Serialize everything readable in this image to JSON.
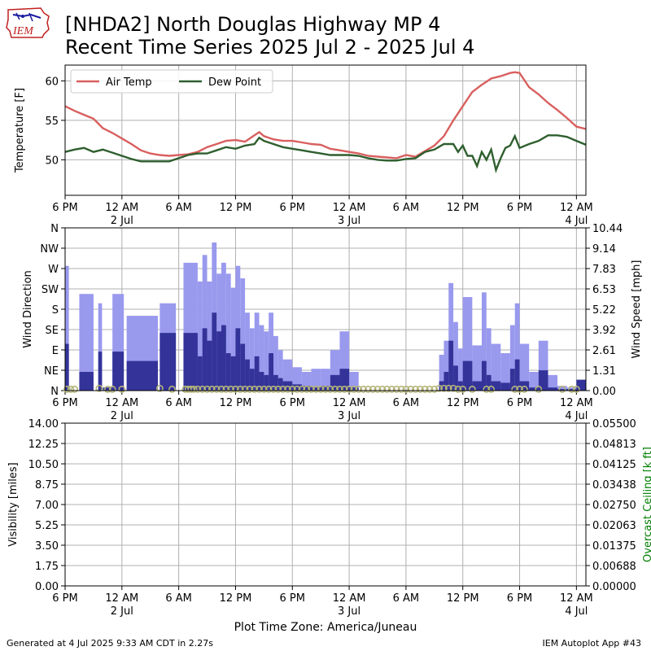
{
  "header": {
    "title_line1": "[NHDA2] North Douglas Highway MP 4",
    "title_line2": "Recent Time Series 2025 Jul 2 - 2025 Jul 4",
    "logo_text": "IEM"
  },
  "footer": {
    "generated": "Generated at 4 Jul 2025 9:33 AM CDT in 2.27s",
    "app": "IEM Autoplot App #43",
    "timezone_label": "Plot Time Zone: America/Juneau"
  },
  "chart_data": [
    {
      "type": "line",
      "ylabel": "Temperature [F]",
      "ylim": [
        45.5,
        62
      ],
      "yticks": [
        50,
        55,
        60
      ],
      "xlim": [
        0,
        55
      ],
      "x_unit": "hours since 2025 Jul 1 6 PM",
      "xticks": [
        {
          "x": 0,
          "label": "6 PM",
          "sub": ""
        },
        {
          "x": 6,
          "label": "12 AM",
          "sub": "2 Jul"
        },
        {
          "x": 12,
          "label": "6 AM",
          "sub": ""
        },
        {
          "x": 18,
          "label": "12 PM",
          "sub": ""
        },
        {
          "x": 24,
          "label": "6 PM",
          "sub": ""
        },
        {
          "x": 30,
          "label": "12 AM",
          "sub": "3 Jul"
        },
        {
          "x": 36,
          "label": "6 AM",
          "sub": ""
        },
        {
          "x": 42,
          "label": "12 PM",
          "sub": ""
        },
        {
          "x": 48,
          "label": "6 PM",
          "sub": ""
        },
        {
          "x": 54,
          "label": "12 AM",
          "sub": "4 Jul"
        }
      ],
      "grid": true,
      "legend": "upper-left",
      "series": [
        {
          "name": "Air Temp",
          "color": "#d95f5f",
          "x": [
            0,
            1,
            2,
            3,
            4,
            5,
            6,
            7,
            8,
            9,
            10,
            11,
            12,
            13,
            14,
            15,
            16,
            17,
            18,
            19,
            20,
            20.5,
            21,
            22,
            23,
            24,
            25,
            26,
            27,
            28,
            29,
            30,
            31,
            32,
            33,
            34,
            35,
            36,
            37,
            38,
            39,
            40,
            41,
            42,
            43,
            44,
            45,
            46,
            47,
            47.5,
            48,
            49,
            50,
            51,
            52,
            53,
            54,
            55
          ],
          "y": [
            56.8,
            56.2,
            55.7,
            55.2,
            54.0,
            53.4,
            52.7,
            52.0,
            51.2,
            50.8,
            50.6,
            50.5,
            50.6,
            50.7,
            51.0,
            51.6,
            52.0,
            52.4,
            52.5,
            52.3,
            53.1,
            53.5,
            53.0,
            52.6,
            52.4,
            52.4,
            52.2,
            52.0,
            51.9,
            51.4,
            51.2,
            51.0,
            50.8,
            50.5,
            50.4,
            50.3,
            50.2,
            50.6,
            50.4,
            51.1,
            51.8,
            53.0,
            55.0,
            56.8,
            58.6,
            59.5,
            60.3,
            60.6,
            61.0,
            61.1,
            61.0,
            59.2,
            58.3,
            57.2,
            56.3,
            55.3,
            54.2,
            53.9
          ]
        },
        {
          "name": "Dew Point",
          "color": "#2f5f2f",
          "x": [
            0,
            1,
            2,
            3,
            4,
            5,
            6,
            7,
            8,
            9,
            10,
            11,
            12,
            13,
            14,
            15,
            16,
            17,
            18,
            19,
            20,
            20.5,
            21,
            22,
            23,
            24,
            25,
            26,
            27,
            28,
            29,
            30,
            31,
            32,
            33,
            34,
            35,
            36,
            37,
            38,
            39,
            40,
            41,
            41.5,
            42,
            42.5,
            43,
            43.5,
            44,
            44.5,
            45,
            45.5,
            46,
            46.5,
            47,
            47.5,
            48,
            49,
            50,
            51,
            52,
            53,
            54,
            55
          ],
          "y": [
            51.0,
            51.3,
            51.5,
            51.0,
            51.3,
            50.9,
            50.5,
            50.1,
            49.8,
            49.8,
            49.8,
            49.8,
            50.2,
            50.6,
            50.8,
            50.8,
            51.2,
            51.6,
            51.4,
            51.8,
            52.0,
            52.8,
            52.4,
            52.0,
            51.6,
            51.4,
            51.2,
            51.0,
            50.8,
            50.6,
            50.6,
            50.6,
            50.5,
            50.2,
            50.0,
            49.9,
            49.9,
            50.1,
            50.2,
            51.0,
            51.3,
            52.0,
            52.0,
            51.0,
            51.8,
            50.5,
            50.5,
            49.2,
            51.0,
            50.0,
            51.3,
            48.7,
            50.2,
            51.5,
            51.8,
            53.0,
            51.5,
            52.0,
            52.4,
            53.1,
            53.1,
            52.9,
            52.4,
            51.9
          ]
        }
      ]
    },
    {
      "type": "bar",
      "ylabel": "Wind Direction",
      "y2label": "Wind Speed [mph]",
      "ylim": [
        0,
        360
      ],
      "y2lim": [
        0,
        10.44
      ],
      "yticks": [
        {
          "v": 0,
          "label": "N"
        },
        {
          "v": 45,
          "label": "NE"
        },
        {
          "v": 90,
          "label": "E"
        },
        {
          "v": 135,
          "label": "SE"
        },
        {
          "v": 180,
          "label": "S"
        },
        {
          "v": 225,
          "label": "SW"
        },
        {
          "v": 270,
          "label": "W"
        },
        {
          "v": 315,
          "label": "NW"
        },
        {
          "v": 360,
          "label": "N"
        }
      ],
      "y2ticks": [
        "0.00",
        "1.31",
        "2.61",
        "3.92",
        "5.22",
        "6.53",
        "7.83",
        "9.14",
        "10.44"
      ],
      "xlim": [
        0,
        55
      ],
      "grid": true,
      "gust_color": "#9999ee",
      "speed_color": "#333399",
      "direction_marker_color": "#b5b57a",
      "series": [
        {
          "name": "gust",
          "x": [
            0,
            1.5,
            3.5,
            4.0,
            5.0,
            6.5,
            10.0,
            12.5,
            14.0,
            14.5,
            15.0,
            15.5,
            16.0,
            16.5,
            17.0,
            17.5,
            18.0,
            18.5,
            19.0,
            19.5,
            20.0,
            20.5,
            21.0,
            21.5,
            22.0,
            22.5,
            23.0,
            24.0,
            25.0,
            26.0,
            27.0,
            28.0,
            29.0,
            30.0,
            39.5,
            40.0,
            40.5,
            41.0,
            41.5,
            42.0,
            43.0,
            44.0,
            44.5,
            45.0,
            46.0,
            47.0,
            47.5,
            48.0,
            49.0,
            50.0,
            51.0,
            52.0,
            53.0,
            54.0
          ],
          "w": [
            0.4,
            1.5,
            0.4,
            1.0,
            1.2,
            3.3,
            1.7,
            1.5,
            0.5,
            0.5,
            0.5,
            0.5,
            0.5,
            0.5,
            0.5,
            0.5,
            0.5,
            0.5,
            0.5,
            0.5,
            0.5,
            0.5,
            0.5,
            0.5,
            0.5,
            0.5,
            1.0,
            1.0,
            1.0,
            1.0,
            1.0,
            1.0,
            1.0,
            1.0,
            0.5,
            0.5,
            0.5,
            0.5,
            0.5,
            1.0,
            1.0,
            0.5,
            0.5,
            1.0,
            1.0,
            0.5,
            0.5,
            1.0,
            1.0,
            1.0,
            1.0,
            1.0,
            1.0,
            1.0
          ],
          "v": [
            8.0,
            6.2,
            5.6,
            0.2,
            6.2,
            4.8,
            5.6,
            8.2,
            7.0,
            8.7,
            7.0,
            9.5,
            7.5,
            8.2,
            7.5,
            6.6,
            8.0,
            7.2,
            5.0,
            4.0,
            5.0,
            4.2,
            3.8,
            5.0,
            3.5,
            2.6,
            2.0,
            1.5,
            1.2,
            1.4,
            1.4,
            2.6,
            3.8,
            1.2,
            2.3,
            3.2,
            6.9,
            4.4,
            2.7,
            6.0,
            2.9,
            6.3,
            4.0,
            3.0,
            2.4,
            4.2,
            5.6,
            3.0,
            1.2,
            3.2,
            1.0,
            0.3,
            0.2,
            0.2
          ]
        },
        {
          "name": "speed",
          "x": [
            0,
            1.5,
            3.5,
            4.0,
            5.0,
            6.5,
            10.0,
            12.5,
            14.0,
            14.5,
            15.0,
            15.5,
            16.0,
            16.5,
            17.0,
            17.5,
            18.0,
            18.5,
            19.0,
            19.5,
            20.0,
            20.5,
            21.0,
            21.5,
            22.0,
            22.5,
            23.0,
            24.0,
            25.0,
            26.0,
            27.0,
            28.0,
            29.0,
            30.0,
            39.5,
            40.0,
            40.5,
            41.0,
            41.5,
            42.0,
            43.0,
            44.0,
            44.5,
            45.0,
            46.0,
            47.0,
            47.5,
            48.0,
            49.0,
            50.0,
            51.0,
            52.0,
            53.0,
            54.0
          ],
          "w": [
            0.4,
            1.5,
            0.4,
            1.0,
            1.2,
            3.3,
            1.7,
            1.5,
            0.5,
            0.5,
            0.5,
            0.5,
            0.5,
            0.5,
            0.5,
            0.5,
            0.5,
            0.5,
            0.5,
            0.5,
            0.5,
            0.5,
            0.5,
            0.5,
            0.5,
            0.5,
            1.0,
            1.0,
            1.0,
            1.0,
            1.0,
            1.0,
            1.0,
            1.0,
            0.5,
            0.5,
            0.5,
            0.5,
            0.5,
            1.0,
            1.0,
            0.5,
            0.5,
            1.0,
            1.0,
            0.5,
            0.5,
            1.0,
            1.0,
            1.0,
            1.0,
            1.0,
            1.0,
            1.0
          ],
          "v": [
            3.0,
            1.2,
            2.5,
            0.2,
            2.5,
            1.9,
            3.7,
            3.7,
            2.2,
            4.0,
            3.2,
            5.0,
            3.8,
            4.2,
            2.4,
            2.2,
            4.0,
            3.0,
            2.0,
            1.4,
            2.2,
            1.2,
            1.0,
            2.4,
            1.0,
            0.8,
            0.6,
            0.4,
            0.3,
            0.2,
            0.3,
            1.0,
            1.4,
            0.2,
            0.6,
            1.2,
            3.2,
            1.6,
            0.6,
            1.9,
            0.6,
            1.9,
            1.0,
            0.6,
            0.5,
            1.4,
            2.0,
            0.6,
            0.2,
            1.3,
            0.2,
            0.1,
            0.1,
            0.7
          ]
        },
        {
          "name": "direction",
          "x": [
            0.2,
            0.6,
            1.0,
            3.6,
            4.5,
            5.0,
            6.0,
            10.0,
            11.3,
            12.7,
            13.0,
            13.3,
            13.6,
            14.0,
            14.5,
            15.0,
            15.5,
            16.0,
            16.5,
            17.0,
            17.5,
            18.0,
            18.5,
            19.0,
            19.5,
            20.0,
            20.5,
            21.0,
            21.5,
            22.0,
            22.5,
            23.0,
            23.5,
            24.0,
            24.5,
            25.0,
            25.5,
            26.0,
            26.5,
            27.0,
            27.5,
            28.0,
            28.5,
            29.0,
            29.5,
            30.0,
            30.5,
            31.0,
            31.5,
            32.0,
            32.5,
            33.0,
            33.5,
            34.0,
            34.5,
            35.0,
            35.5,
            36.0,
            36.5,
            37.0,
            37.5,
            38.0,
            38.5,
            39.0,
            39.5,
            40.0,
            40.5,
            41.0,
            41.5,
            42.0,
            43.0,
            44.5,
            45.0,
            47.5,
            48.0,
            48.5,
            50.0,
            52.5,
            53.5,
            54.0
          ],
          "v": [
            3,
            3,
            3,
            5,
            3,
            3,
            3,
            5,
            3,
            3,
            3,
            3,
            3,
            3,
            3,
            3,
            3,
            3,
            3,
            3,
            3,
            3,
            3,
            3,
            3,
            3,
            3,
            3,
            3,
            3,
            3,
            3,
            3,
            3,
            3,
            3,
            3,
            3,
            3,
            3,
            3,
            3,
            3,
            3,
            3,
            3,
            3,
            3,
            3,
            3,
            3,
            3,
            3,
            3,
            3,
            3,
            3,
            3,
            3,
            3,
            3,
            3,
            3,
            3,
            5,
            5,
            5,
            5,
            3,
            3,
            3,
            3,
            3,
            3,
            3,
            3,
            3,
            3,
            3,
            3
          ]
        }
      ]
    },
    {
      "type": "line",
      "ylabel": "Visibility [miles]",
      "y2label": "Overcast Ceiling [k ft]",
      "y2label_color": "#008000",
      "ylim": [
        0,
        14
      ],
      "yticks": [
        "0.00",
        "1.75",
        "3.50",
        "5.25",
        "7.00",
        "8.75",
        "10.50",
        "12.25",
        "14.00"
      ],
      "y2ticks": [
        "0.00000",
        "0.00688",
        "0.01375",
        "0.02063",
        "0.02750",
        "0.03438",
        "0.04125",
        "0.04813",
        "0.05500"
      ],
      "xlim": [
        0,
        55
      ],
      "grid": true,
      "series": []
    }
  ]
}
